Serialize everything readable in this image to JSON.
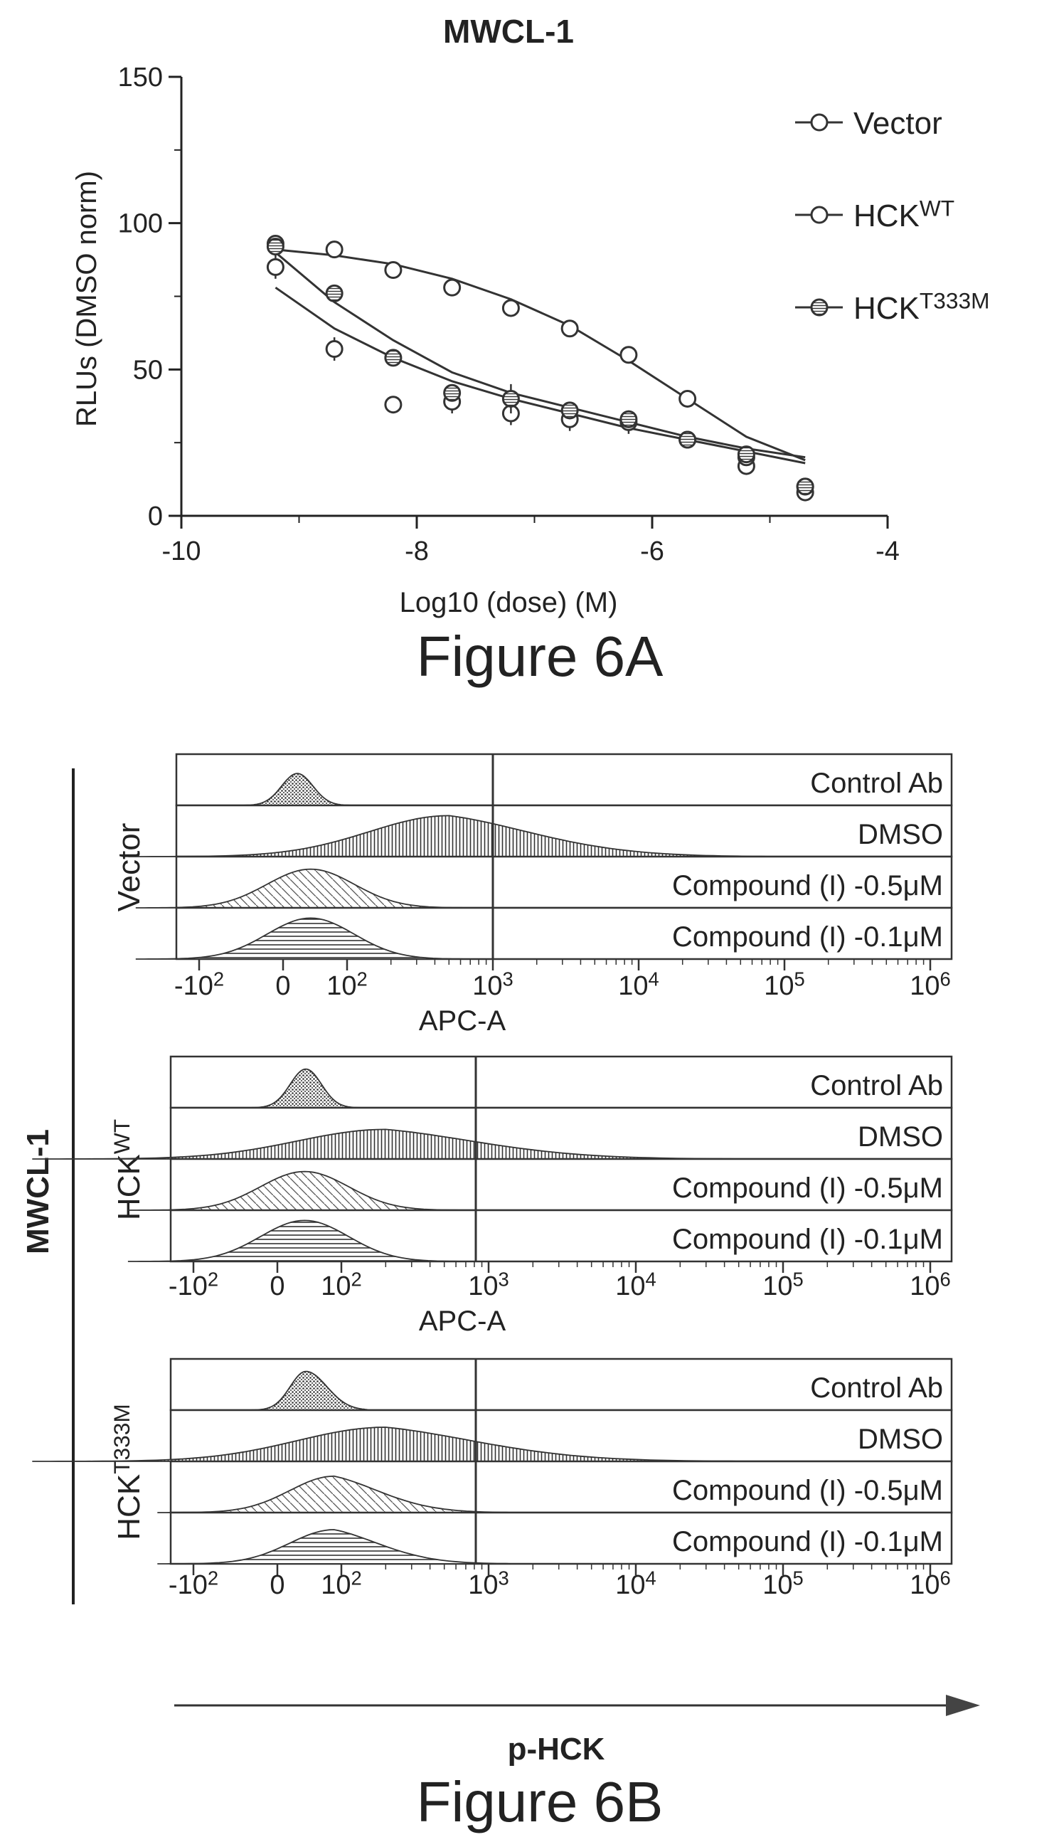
{
  "figure_a": {
    "caption": "Figure 6A",
    "chart_data": {
      "type": "scatter",
      "title": "MWCL-1",
      "xlabel": "Log10 (dose) (M)",
      "ylabel": "RLUs (DMSO norm)",
      "xlim": [
        -10,
        -4
      ],
      "ylim": [
        0,
        150
      ],
      "xticks": [
        "-10",
        "-8",
        "-6",
        "-4"
      ],
      "yticks": [
        "0",
        "50",
        "100",
        "150"
      ],
      "grid": false,
      "legend": "top-right",
      "series": [
        {
          "name": "Vector",
          "marker": "open-circle",
          "x": [
            -9.2,
            -8.7,
            -8.2,
            -7.7,
            -7.2,
            -6.7,
            -6.2,
            -5.7,
            -5.2,
            -4.7
          ],
          "y": [
            85,
            57,
            38,
            39,
            35,
            33,
            32,
            26,
            17,
            8
          ],
          "err": [
            4,
            4,
            2,
            4,
            4,
            4,
            4,
            2,
            2,
            2
          ],
          "fit": [
            [
              -9.2,
              78
            ],
            [
              -8.7,
              64
            ],
            [
              -8.2,
              54
            ],
            [
              -7.7,
              46
            ],
            [
              -7.2,
              40
            ],
            [
              -6.7,
              35
            ],
            [
              -6.2,
              30
            ],
            [
              -5.7,
              26
            ],
            [
              -5.2,
              22
            ],
            [
              -4.7,
              18
            ]
          ]
        },
        {
          "name": "HCK^WT",
          "marker": "open-circle",
          "x": [
            -9.2,
            -8.7,
            -8.2,
            -7.7,
            -7.2,
            -6.7,
            -6.2,
            -5.7,
            -5.2,
            -4.7
          ],
          "y": [
            93,
            91,
            84,
            78,
            71,
            64,
            55,
            40,
            20,
            10
          ],
          "err": [
            2,
            2,
            2,
            2,
            2,
            2,
            2,
            2,
            2,
            2
          ],
          "fit": [
            [
              -9.2,
              91
            ],
            [
              -8.7,
              89
            ],
            [
              -8.2,
              86
            ],
            [
              -7.7,
              81
            ],
            [
              -7.2,
              74
            ],
            [
              -6.7,
              65
            ],
            [
              -6.2,
              53
            ],
            [
              -5.7,
              40
            ],
            [
              -5.2,
              27
            ],
            [
              -4.7,
              19
            ]
          ]
        },
        {
          "name": "HCK^T333M",
          "marker": "hatched-circle",
          "x": [
            -9.2,
            -8.7,
            -8.2,
            -7.7,
            -7.2,
            -6.7,
            -6.2,
            -5.7,
            -5.2,
            -4.7
          ],
          "y": [
            92,
            76,
            54,
            42,
            40,
            36,
            33,
            26,
            21,
            10
          ],
          "err": [
            2,
            2,
            2,
            2,
            5,
            3,
            3,
            2,
            2,
            2
          ],
          "fit": [
            [
              -9.2,
              90
            ],
            [
              -8.7,
              73
            ],
            [
              -8.2,
              60
            ],
            [
              -7.7,
              49
            ],
            [
              -7.2,
              42
            ],
            [
              -6.7,
              37
            ],
            [
              -6.2,
              32
            ],
            [
              -5.7,
              27
            ],
            [
              -5.2,
              23
            ],
            [
              -4.7,
              20
            ]
          ]
        }
      ],
      "legend_entries": [
        {
          "base": "Vector",
          "sup": ""
        },
        {
          "base": "HCK",
          "sup": "WT"
        },
        {
          "base": "HCK",
          "sup": "T333M"
        }
      ]
    }
  },
  "figure_b": {
    "caption": "Figure 6B",
    "cell_line": "MWCL-1",
    "arrow_label": "p-HCK",
    "gate_x": 3.0,
    "chart_data": [
      {
        "type": "histogram",
        "group": {
          "base": "Vector",
          "sup": ""
        },
        "xlabel": "APC-A",
        "xticks": [
          {
            "base": "-10",
            "sup": "2"
          },
          {
            "base": "0",
            "sup": ""
          },
          {
            "base": "10",
            "sup": "2"
          },
          {
            "base": "10",
            "sup": "3"
          },
          {
            "base": "10",
            "sup": "4"
          },
          {
            "base": "10",
            "sup": "5"
          },
          {
            "base": "10",
            "sup": "6"
          }
        ],
        "tracks": [
          {
            "label": "Control Ab",
            "fill": "dots",
            "peak": 0.7
          },
          {
            "label": "DMSO",
            "fill": "vertical",
            "peak": 0.9
          },
          {
            "label": "Compound (I) -0.5μM",
            "fill": "diagonal",
            "peak": 0.85
          },
          {
            "label": "Compound (I) -0.1μM",
            "fill": "horizontal",
            "peak": 0.9
          }
        ]
      },
      {
        "type": "histogram",
        "group": {
          "base": "HCK",
          "sup": "WT"
        },
        "xlabel": "APC-A",
        "xticks": [
          {
            "base": "-10",
            "sup": "2"
          },
          {
            "base": "0",
            "sup": ""
          },
          {
            "base": "10",
            "sup": "2"
          },
          {
            "base": "10",
            "sup": "3"
          },
          {
            "base": "10",
            "sup": "4"
          },
          {
            "base": "10",
            "sup": "5"
          },
          {
            "base": "10",
            "sup": "6"
          }
        ],
        "tracks": [
          {
            "label": "Control Ab",
            "fill": "dots",
            "peak": 0.85
          },
          {
            "label": "DMSO",
            "fill": "vertical",
            "peak": 0.65
          },
          {
            "label": "Compound (I) -0.5μM",
            "fill": "diagonal",
            "peak": 0.85
          },
          {
            "label": "Compound (I) -0.1μM",
            "fill": "horizontal",
            "peak": 0.9
          }
        ]
      },
      {
        "type": "histogram",
        "group": {
          "base": "HCK",
          "sup": "T333M"
        },
        "xlabel": "",
        "xticks": [
          {
            "base": "-10",
            "sup": "2"
          },
          {
            "base": "0",
            "sup": ""
          },
          {
            "base": "10",
            "sup": "2"
          },
          {
            "base": "10",
            "sup": "3"
          },
          {
            "base": "10",
            "sup": "4"
          },
          {
            "base": "10",
            "sup": "5"
          },
          {
            "base": "10",
            "sup": "6"
          }
        ],
        "tracks": [
          {
            "label": "Control Ab",
            "fill": "dots",
            "peak": 0.85
          },
          {
            "label": "DMSO",
            "fill": "vertical",
            "peak": 0.75
          },
          {
            "label": "Compound (I) -0.5μM",
            "fill": "diagonal",
            "peak": 0.8
          },
          {
            "label": "Compound (I) -0.1μM",
            "fill": "horizontal",
            "peak": 0.75
          }
        ]
      }
    ]
  }
}
